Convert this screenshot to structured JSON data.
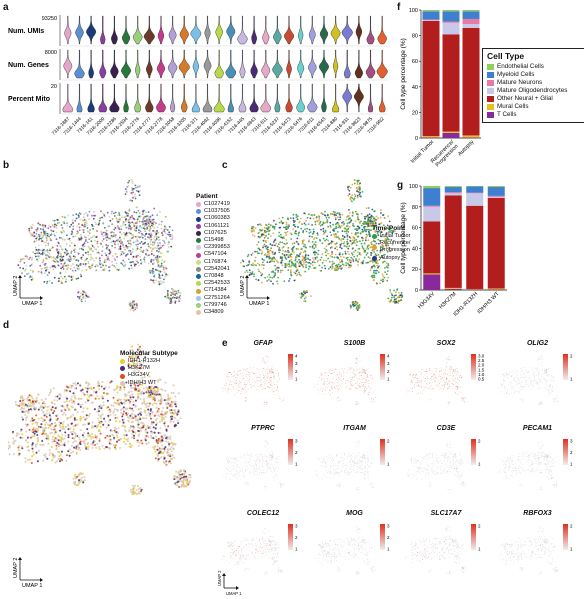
{
  "panels": {
    "a": "a",
    "b": "b",
    "c": "c",
    "d": "d",
    "e": "e",
    "f": "f",
    "g": "g"
  },
  "violin": {
    "rows": [
      {
        "label": "Num. UMIs",
        "max": "93250"
      },
      {
        "label": "Num. Genes",
        "max": "8000"
      },
      {
        "label": "Percent Mito",
        "max": "20"
      }
    ],
    "samples": [
      "7316-1887",
      "7316-1444",
      "7316-161",
      "7316-2000",
      "7316-2286",
      "7316-2594",
      "7316-2776",
      "7316-2777",
      "7316-2778",
      "7316-3058",
      "7316-3205",
      "7316-371",
      "7316-4092",
      "7316-4096",
      "7316-4152",
      "7316-445",
      "7316-4843",
      "7316-511",
      "7316-5237",
      "7316-5473",
      "7316-5476",
      "7316-611",
      "7316-6543",
      "7316-880",
      "7316-931",
      "7316-9823",
      "7316-9875",
      "7316-9N2"
    ],
    "colors": [
      "#e7a5c9",
      "#5a8fd0",
      "#1d3a7a",
      "#8a3fa0",
      "#3a2050",
      "#27783a",
      "#9bd07a",
      "#6a3b2a",
      "#c63a8c",
      "#b2a0d4",
      "#d47a2a",
      "#7ac0e8",
      "#999999",
      "#b8d94a",
      "#4a8fb8",
      "#c8b8e0",
      "#4a2a70",
      "#e8a8c8",
      "#5aa8a0",
      "#c84a30",
      "#6ad0d0",
      "#a0a0e0",
      "#2a6a4a",
      "#d0c020",
      "#7a7ad0",
      "#603020",
      "#a05080",
      "#e06030"
    ]
  },
  "legend_patient": {
    "title": "Patient",
    "items": [
      {
        "label": "C1027419",
        "color": "#e7a5c9"
      },
      {
        "label": "C1037505",
        "color": "#5a8fd0"
      },
      {
        "label": "C1060383",
        "color": "#1d3a7a"
      },
      {
        "label": "C1061121",
        "color": "#8a3fa0"
      },
      {
        "label": "C107625",
        "color": "#3a2050"
      },
      {
        "label": "C15498",
        "color": "#27783a"
      },
      {
        "label": "C2399853",
        "color": "#d0c8e8"
      },
      {
        "label": "C547104",
        "color": "#c63a8c"
      },
      {
        "label": "C176874",
        "color": "#c8e08a"
      },
      {
        "label": "C2542041",
        "color": "#888888"
      },
      {
        "label": "C70848",
        "color": "#1a6a8a"
      },
      {
        "label": "C2542533",
        "color": "#b8d94a"
      },
      {
        "label": "C714384",
        "color": "#d4a030"
      },
      {
        "label": "C2751264",
        "color": "#a0c8e8"
      },
      {
        "label": "C799746",
        "color": "#9bd07a"
      },
      {
        "label": "C34809",
        "color": "#e8c0a0"
      }
    ]
  },
  "legend_time": {
    "title": "Time Point",
    "items": [
      {
        "label": "Initial Tumor",
        "color": "#2a9d4a"
      },
      {
        "label": "Recurrence/\nProgression",
        "color": "#e8a030"
      },
      {
        "label": "Autopsy",
        "color": "#243a8a"
      }
    ]
  },
  "legend_subtype": {
    "title": "Molecular Subtype",
    "items": [
      {
        "label": "IDH1-R132H",
        "color": "#e8d020"
      },
      {
        "label": "H3K27M",
        "color": "#4a2a70"
      },
      {
        "label": "H3G34V",
        "color": "#e04a1a"
      },
      {
        "label": "IDH/H3 WT",
        "color": "#d8c8b0"
      }
    ]
  },
  "umap_axes": {
    "x": "UMAP 1",
    "y": "UMAP 2"
  },
  "genes": [
    "GFAP",
    "S100B",
    "SOX2",
    "OLIG2",
    "PTPRC",
    "ITGAM",
    "CD3E",
    "PECAM1",
    "COLEC12",
    "MOG",
    "SLC17A7",
    "RBFOX3"
  ],
  "gene_scales": [
    [
      "4",
      "3",
      "2",
      "1"
    ],
    [
      "4",
      "3",
      "2",
      "1"
    ],
    [
      "3.0",
      "2.5",
      "2.0",
      "1.5",
      "1.0",
      "0.5"
    ],
    [
      "2",
      "1"
    ],
    [
      "3",
      "2",
      "1"
    ],
    [
      "2",
      "1"
    ],
    [
      "2",
      "1"
    ],
    [
      "3",
      "2",
      "1"
    ],
    [
      "3",
      "2",
      "1"
    ],
    [
      "3",
      "2",
      "1"
    ],
    [
      "2",
      "1"
    ],
    [
      "2",
      "1"
    ]
  ],
  "celltype_legend": {
    "title": "Cell Type",
    "items": [
      {
        "label": "Endothelial Cells",
        "color": "#8fd05a"
      },
      {
        "label": "Myeloid Cells",
        "color": "#3f7fd0"
      },
      {
        "label": "Mature Neurons",
        "color": "#e87aa8"
      },
      {
        "label": "Mature Oligodendrocytes",
        "color": "#c8c8e8"
      },
      {
        "label": "Other Neural + Glial",
        "color": "#b21e1e"
      },
      {
        "label": "Mural Cells",
        "color": "#e8c020"
      },
      {
        "label": "T Cells",
        "color": "#8a2a9a"
      }
    ]
  },
  "chart_data": [
    {
      "type": "bar",
      "stacked": true,
      "panel": "f",
      "ylabel": "Cell type percentage (%)",
      "ylim": [
        0,
        100
      ],
      "yticks": [
        "0",
        "20",
        "40",
        "60",
        "80",
        "100"
      ],
      "categories": [
        "Initial Tumor",
        "Recurrence/\nProgression",
        "Autopsy"
      ],
      "series": [
        {
          "name": "T Cells",
          "values": [
            0.5,
            4,
            0.5
          ]
        },
        {
          "name": "Mural Cells",
          "values": [
            1,
            1,
            1.5
          ]
        },
        {
          "name": "Other Neural + Glial",
          "values": [
            90,
            76,
            84
          ]
        },
        {
          "name": "Mature Oligodendrocytes",
          "values": [
            0.5,
            9,
            3
          ]
        },
        {
          "name": "Mature Neurons",
          "values": [
            0.5,
            1,
            4
          ]
        },
        {
          "name": "Myeloid Cells",
          "values": [
            6.5,
            8,
            6
          ]
        },
        {
          "name": "Endothelial Cells",
          "values": [
            1,
            1,
            1
          ]
        }
      ]
    },
    {
      "type": "bar",
      "stacked": true,
      "panel": "g",
      "ylabel": "Cell type percentage (%)",
      "ylim": [
        0,
        100
      ],
      "yticks": [
        "0",
        "20",
        "40",
        "60",
        "80",
        "100"
      ],
      "categories": [
        "H3G34V",
        "H3K27M",
        "IDH1-R132H",
        "IDH/H3 WT"
      ],
      "series": [
        {
          "name": "T Cells",
          "values": [
            15,
            1,
            0.5,
            0.5
          ]
        },
        {
          "name": "Mural Cells",
          "values": [
            1,
            1,
            0.5,
            1
          ]
        },
        {
          "name": "Other Neural + Glial",
          "values": [
            50,
            89,
            80,
            87
          ]
        },
        {
          "name": "Mature Oligodendrocytes",
          "values": [
            14,
            2,
            12,
            1
          ]
        },
        {
          "name": "Mature Neurons",
          "values": [
            1,
            1,
            0.5,
            1
          ]
        },
        {
          "name": "Myeloid Cells",
          "values": [
            17,
            5,
            6,
            8.5
          ]
        },
        {
          "name": "Endothelial Cells",
          "values": [
            2,
            1,
            0.5,
            1
          ]
        }
      ]
    }
  ]
}
